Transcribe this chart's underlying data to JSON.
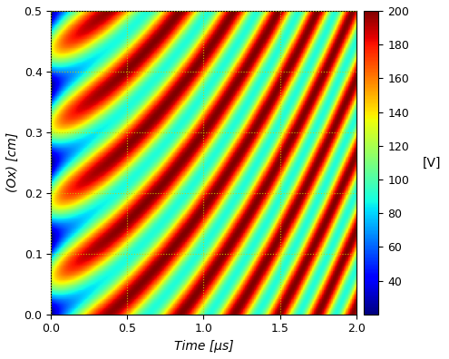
{
  "t_min": 0.0,
  "t_max": 2.0,
  "x_min": 0.0,
  "x_max": 0.5,
  "vmin": 20,
  "vmax": 200,
  "cbar_ticks": [
    40,
    60,
    80,
    100,
    120,
    140,
    160,
    180,
    200
  ],
  "cbar_label": "[V]",
  "xlabel": "Time [μs]",
  "ylabel": "(Ox) [cm]",
  "xticks": [
    0.0,
    0.5,
    1.0,
    1.5,
    2.0
  ],
  "yticks": [
    0.0,
    0.1,
    0.2,
    0.3,
    0.4,
    0.5
  ],
  "grid_color": "#cccc00",
  "grid_linestyle": ":",
  "colormap": "jet",
  "n_time": 500,
  "n_space": 400,
  "figsize": [
    4.95,
    3.96
  ],
  "dpi": 100
}
